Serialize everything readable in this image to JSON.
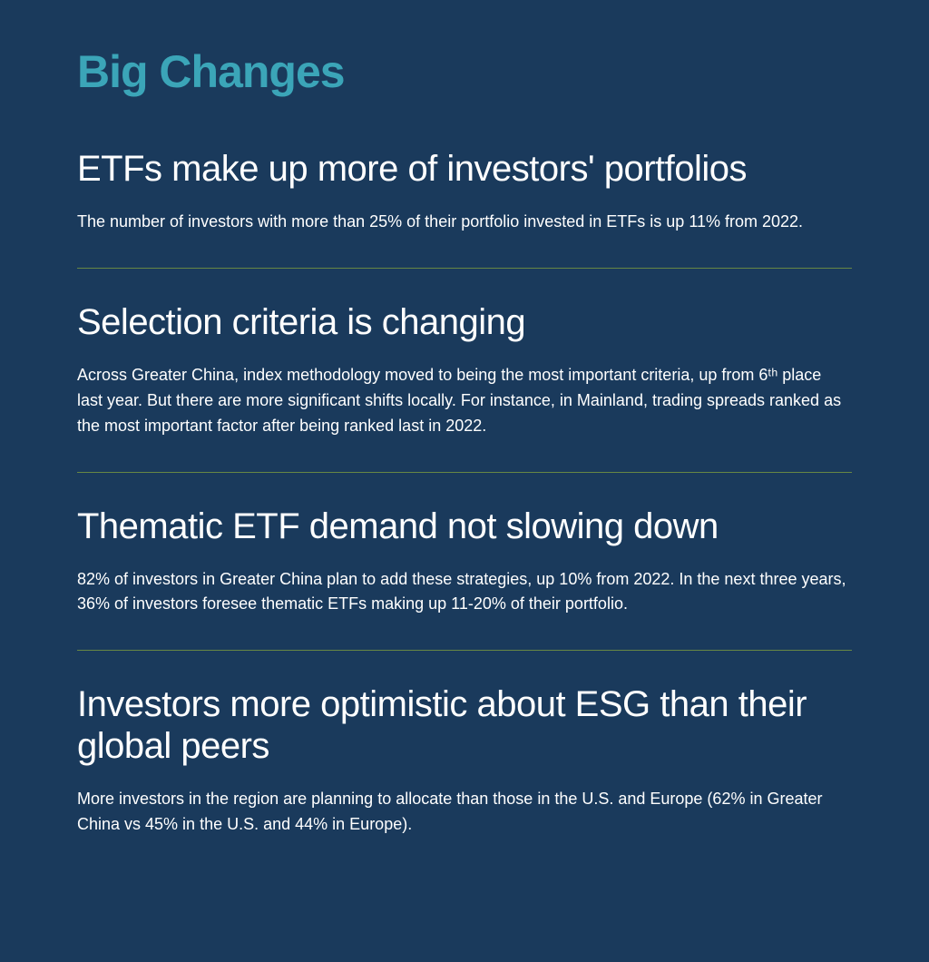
{
  "page": {
    "background_color": "#1a3a5c",
    "text_color": "#ffffff",
    "accent_color": "#3ba5b8",
    "divider_color": "#7a9b3f",
    "title_fontsize": 50,
    "heading_fontsize": 40,
    "body_fontsize": 18
  },
  "title": "Big Changes",
  "sections": [
    {
      "heading": "ETFs make up more of investors' portfolios",
      "body": "The number of investors with more than 25% of their portfolio invested in ETFs is up 11% from 2022."
    },
    {
      "heading": "Selection criteria is changing",
      "body": "Across Greater China, index methodology moved to being the most important criteria, up from 6ᵗʰ place last year. But there are more significant shifts locally. For instance, in Mainland, trading spreads ranked as the most important factor after being ranked last in 2022."
    },
    {
      "heading": "Thematic ETF demand not slowing down",
      "body": "82% of investors in Greater China plan to add these strategies, up 10% from 2022. In the next three years, 36% of investors foresee thematic ETFs making up 11-20% of their portfolio."
    },
    {
      "heading": "Investors more optimistic about ESG than their global peers",
      "body": "More investors in the region are planning to allocate than those in the U.S. and Europe (62% in Greater China vs 45% in the U.S. and 44% in Europe)."
    }
  ]
}
